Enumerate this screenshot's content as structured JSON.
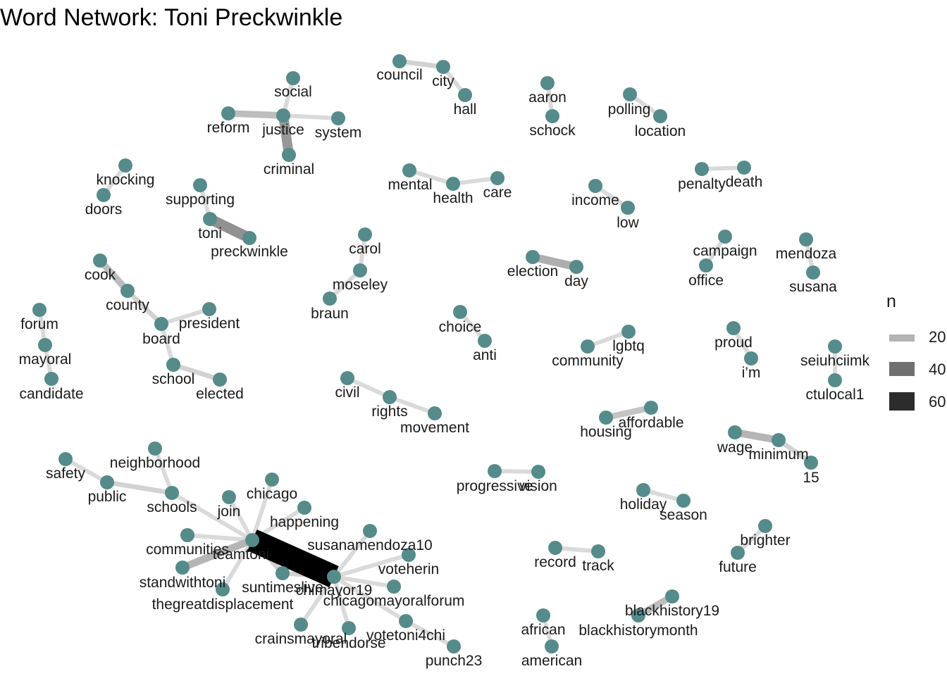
{
  "title": "Word Network: Toni Preckwinkle",
  "style": {
    "node_color": "#558b8b",
    "edge_color_low": "#bdbdbd",
    "edge_color_high": "#000000"
  },
  "legend": {
    "title": "n",
    "items": [
      {
        "label": "20",
        "value": 20
      },
      {
        "label": "40",
        "value": 40
      },
      {
        "label": "60",
        "value": 60
      }
    ]
  },
  "chart_data": {
    "type": "network",
    "title": "Word Network: Toni Preckwinkle",
    "edges": [
      {
        "from": "council",
        "to": "city",
        "n": 12
      },
      {
        "from": "city",
        "to": "hall",
        "n": 10
      },
      {
        "from": "social",
        "to": "justice",
        "n": 10
      },
      {
        "from": "reform",
        "to": "justice",
        "n": 18
      },
      {
        "from": "justice",
        "to": "system",
        "n": 10
      },
      {
        "from": "justice",
        "to": "criminal",
        "n": 28
      },
      {
        "from": "aaron",
        "to": "schock",
        "n": 10
      },
      {
        "from": "polling",
        "to": "location",
        "n": 10
      },
      {
        "from": "knocking",
        "to": "doors",
        "n": 10
      },
      {
        "from": "supporting",
        "to": "toni",
        "n": 10
      },
      {
        "from": "toni",
        "to": "preckwinkle",
        "n": 30
      },
      {
        "from": "mental",
        "to": "health",
        "n": 10
      },
      {
        "from": "health",
        "to": "care",
        "n": 10
      },
      {
        "from": "income",
        "to": "low",
        "n": 10
      },
      {
        "from": "penalty",
        "to": "death",
        "n": 10
      },
      {
        "from": "carol",
        "to": "moseley",
        "n": 10
      },
      {
        "from": "moseley",
        "to": "braun",
        "n": 10
      },
      {
        "from": "election",
        "to": "day",
        "n": 22
      },
      {
        "from": "campaign",
        "to": "office",
        "n": 10
      },
      {
        "from": "mendoza",
        "to": "susana",
        "n": 10
      },
      {
        "from": "cook",
        "to": "county",
        "n": 18
      },
      {
        "from": "county",
        "to": "board",
        "n": 12
      },
      {
        "from": "president",
        "to": "board",
        "n": 10
      },
      {
        "from": "board",
        "to": "school",
        "n": 10
      },
      {
        "from": "school",
        "to": "elected",
        "n": 12
      },
      {
        "from": "forum",
        "to": "mayoral",
        "n": 10
      },
      {
        "from": "mayoral",
        "to": "candidate",
        "n": 10
      },
      {
        "from": "choice",
        "to": "anti",
        "n": 10
      },
      {
        "from": "community",
        "to": "lgbtq",
        "n": 10
      },
      {
        "from": "proud",
        "to": "i’m",
        "n": 10
      },
      {
        "from": "seiuhciimk",
        "to": "ctulocal1",
        "n": 10
      },
      {
        "from": "civil",
        "to": "rights",
        "n": 10
      },
      {
        "from": "rights",
        "to": "movement",
        "n": 10
      },
      {
        "from": "housing",
        "to": "affordable",
        "n": 16
      },
      {
        "from": "wage",
        "to": "minimum",
        "n": 20
      },
      {
        "from": "minimum",
        "to": "15",
        "n": 12
      },
      {
        "from": "progressive",
        "to": "vision",
        "n": 10
      },
      {
        "from": "holiday",
        "to": "season",
        "n": 10
      },
      {
        "from": "record",
        "to": "track",
        "n": 10
      },
      {
        "from": "brighter",
        "to": "future",
        "n": 10
      },
      {
        "from": "blackhistory19",
        "to": "blackhistorymonth",
        "n": 18
      },
      {
        "from": "african",
        "to": "american",
        "n": 10
      },
      {
        "from": "safety",
        "to": "public",
        "n": 10
      },
      {
        "from": "public",
        "to": "schools",
        "n": 12
      },
      {
        "from": "neighborhood",
        "to": "schools",
        "n": 10
      },
      {
        "from": "schools",
        "to": "teamtoni",
        "n": 10
      },
      {
        "from": "chicago",
        "to": "teamtoni",
        "n": 10
      },
      {
        "from": "join",
        "to": "teamtoni",
        "n": 10
      },
      {
        "from": "happening",
        "to": "teamtoni",
        "n": 10
      },
      {
        "from": "communities",
        "to": "teamtoni",
        "n": 10
      },
      {
        "from": "standwithtoni",
        "to": "teamtoni",
        "n": 20
      },
      {
        "from": "thegreatdisplacement",
        "to": "teamtoni",
        "n": 10
      },
      {
        "from": "suntimeslive",
        "to": "teamtoni",
        "n": 12
      },
      {
        "from": "teamtoni",
        "to": "chimayor19",
        "n": 75
      },
      {
        "from": "suntimeslive",
        "to": "chimayor19",
        "n": 12
      },
      {
        "from": "susanamendoza10",
        "to": "chimayor19",
        "n": 10
      },
      {
        "from": "voteherin",
        "to": "chimayor19",
        "n": 10
      },
      {
        "from": "chicagomayoralforum",
        "to": "chimayor19",
        "n": 10
      },
      {
        "from": "crainsmayoral",
        "to": "chimayor19",
        "n": 10
      },
      {
        "from": "tribendorse",
        "to": "chimayor19",
        "n": 10
      },
      {
        "from": "votetoni4chi",
        "to": "chimayor19",
        "n": 10
      },
      {
        "from": "votetoni4chi",
        "to": "punch23",
        "n": 10
      }
    ]
  },
  "nodes": [
    {
      "id": "council",
      "label": "council"
    },
    {
      "id": "city",
      "label": "city"
    },
    {
      "id": "hall",
      "label": "hall"
    },
    {
      "id": "social",
      "label": "social"
    },
    {
      "id": "reform",
      "label": "reform"
    },
    {
      "id": "justice",
      "label": "justice"
    },
    {
      "id": "system",
      "label": "system"
    },
    {
      "id": "criminal",
      "label": "criminal"
    },
    {
      "id": "aaron",
      "label": "aaron"
    },
    {
      "id": "schock",
      "label": "schock"
    },
    {
      "id": "polling",
      "label": "polling"
    },
    {
      "id": "location",
      "label": "location"
    },
    {
      "id": "knocking",
      "label": "knocking"
    },
    {
      "id": "doors",
      "label": "doors"
    },
    {
      "id": "supporting",
      "label": "supporting"
    },
    {
      "id": "toni",
      "label": "toni"
    },
    {
      "id": "preckwinkle",
      "label": "preckwinkle"
    },
    {
      "id": "mental",
      "label": "mental"
    },
    {
      "id": "health",
      "label": "health"
    },
    {
      "id": "care",
      "label": "care"
    },
    {
      "id": "income",
      "label": "income"
    },
    {
      "id": "low",
      "label": "low"
    },
    {
      "id": "penalty",
      "label": "penalty"
    },
    {
      "id": "death",
      "label": "death"
    },
    {
      "id": "carol",
      "label": "carol"
    },
    {
      "id": "moseley",
      "label": "moseley"
    },
    {
      "id": "braun",
      "label": "braun"
    },
    {
      "id": "election",
      "label": "election"
    },
    {
      "id": "day",
      "label": "day"
    },
    {
      "id": "campaign",
      "label": "campaign"
    },
    {
      "id": "office",
      "label": "office"
    },
    {
      "id": "mendoza",
      "label": "mendoza"
    },
    {
      "id": "susana",
      "label": "susana"
    },
    {
      "id": "cook",
      "label": "cook"
    },
    {
      "id": "county",
      "label": "county"
    },
    {
      "id": "president",
      "label": "president"
    },
    {
      "id": "board",
      "label": "board"
    },
    {
      "id": "school",
      "label": "school"
    },
    {
      "id": "elected",
      "label": "elected"
    },
    {
      "id": "forum",
      "label": "forum"
    },
    {
      "id": "mayoral",
      "label": "mayoral"
    },
    {
      "id": "candidate",
      "label": "candidate"
    },
    {
      "id": "choice",
      "label": "choice"
    },
    {
      "id": "anti",
      "label": "anti"
    },
    {
      "id": "community",
      "label": "community"
    },
    {
      "id": "lgbtq",
      "label": "lgbtq"
    },
    {
      "id": "proud",
      "label": "proud"
    },
    {
      "id": "i’m",
      "label": "i’m"
    },
    {
      "id": "seiuhciimk",
      "label": "seiuhciimk"
    },
    {
      "id": "ctulocal1",
      "label": "ctulocal1"
    },
    {
      "id": "civil",
      "label": "civil"
    },
    {
      "id": "rights",
      "label": "rights"
    },
    {
      "id": "movement",
      "label": "movement"
    },
    {
      "id": "housing",
      "label": "housing"
    },
    {
      "id": "affordable",
      "label": "affordable"
    },
    {
      "id": "wage",
      "label": "wage"
    },
    {
      "id": "minimum",
      "label": "minimum"
    },
    {
      "id": "15",
      "label": "15"
    },
    {
      "id": "progressive",
      "label": "progressive"
    },
    {
      "id": "vision",
      "label": "vision"
    },
    {
      "id": "holiday",
      "label": "holiday"
    },
    {
      "id": "season",
      "label": "season"
    },
    {
      "id": "record",
      "label": "record"
    },
    {
      "id": "track",
      "label": "track"
    },
    {
      "id": "brighter",
      "label": "brighter"
    },
    {
      "id": "future",
      "label": "future"
    },
    {
      "id": "blackhistory19",
      "label": "blackhistory19"
    },
    {
      "id": "blackhistorymonth",
      "label": "blackhistorymonth"
    },
    {
      "id": "african",
      "label": "african"
    },
    {
      "id": "american",
      "label": "american"
    },
    {
      "id": "safety",
      "label": "safety"
    },
    {
      "id": "public",
      "label": "public"
    },
    {
      "id": "neighborhood",
      "label": "neighborhood"
    },
    {
      "id": "schools",
      "label": "schools"
    },
    {
      "id": "chicago",
      "label": "chicago"
    },
    {
      "id": "join",
      "label": "join"
    },
    {
      "id": "happening",
      "label": "happening"
    },
    {
      "id": "communities",
      "label": "communities"
    },
    {
      "id": "teamtoni",
      "label": "teamtoni"
    },
    {
      "id": "standwithtoni",
      "label": "standwithtoni"
    },
    {
      "id": "thegreatdisplacement",
      "label": "thegreatdisplacement"
    },
    {
      "id": "suntimeslive",
      "label": "suntimeslive"
    },
    {
      "id": "chimayor19",
      "label": "chimayor19"
    },
    {
      "id": "susanamendoza10",
      "label": "susanamendoza10"
    },
    {
      "id": "voteherin",
      "label": "voteherin"
    },
    {
      "id": "chicagomayoralforum",
      "label": "chicagomayoralforum"
    },
    {
      "id": "crainsmayoral",
      "label": "crainsmayoral"
    },
    {
      "id": "tribendorse",
      "label": "tribendorse"
    },
    {
      "id": "votetoni4chi",
      "label": "votetoni4chi"
    },
    {
      "id": "punch23",
      "label": "punch23"
    }
  ]
}
